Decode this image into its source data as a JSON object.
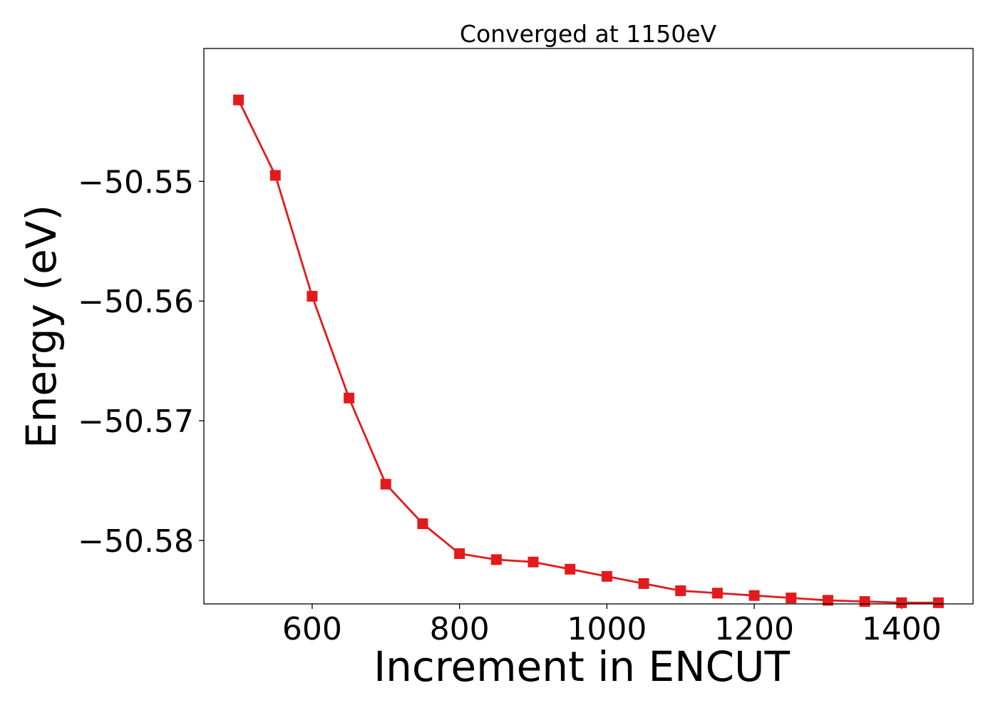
{
  "chart_data": {
    "type": "line",
    "title": "Converged at 1150eV",
    "xlabel": "Increment in ENCUT",
    "ylabel": "Energy (eV)",
    "xlim": [
      453,
      1497
    ],
    "ylim": [
      -50.5853,
      -50.5389
    ],
    "xticks": [
      600,
      800,
      1000,
      1200,
      1400
    ],
    "yticks": [
      -50.55,
      -50.56,
      -50.57,
      -50.58
    ],
    "xtick_labels": [
      "600",
      "800",
      "1000",
      "1200",
      "1400"
    ],
    "ytick_labels": [
      "−50.55",
      "−50.56",
      "−50.57",
      "−50.58"
    ],
    "grid": false,
    "series": [
      {
        "color": "#e31a1c",
        "marker": "square",
        "x": [
          500,
          550,
          600,
          650,
          700,
          750,
          800,
          850,
          900,
          950,
          1000,
          1050,
          1100,
          1150,
          1200,
          1250,
          1300,
          1350,
          1400,
          1450
        ],
        "y": [
          -50.5432,
          -50.5495,
          -50.5596,
          -50.5681,
          -50.5753,
          -50.5786,
          -50.5811,
          -50.5816,
          -50.5818,
          -50.5824,
          -50.583,
          -50.5836,
          -50.5842,
          -50.5844,
          -50.5846,
          -50.5848,
          -50.585,
          -50.5851,
          -50.5852,
          -50.5852
        ]
      }
    ]
  }
}
